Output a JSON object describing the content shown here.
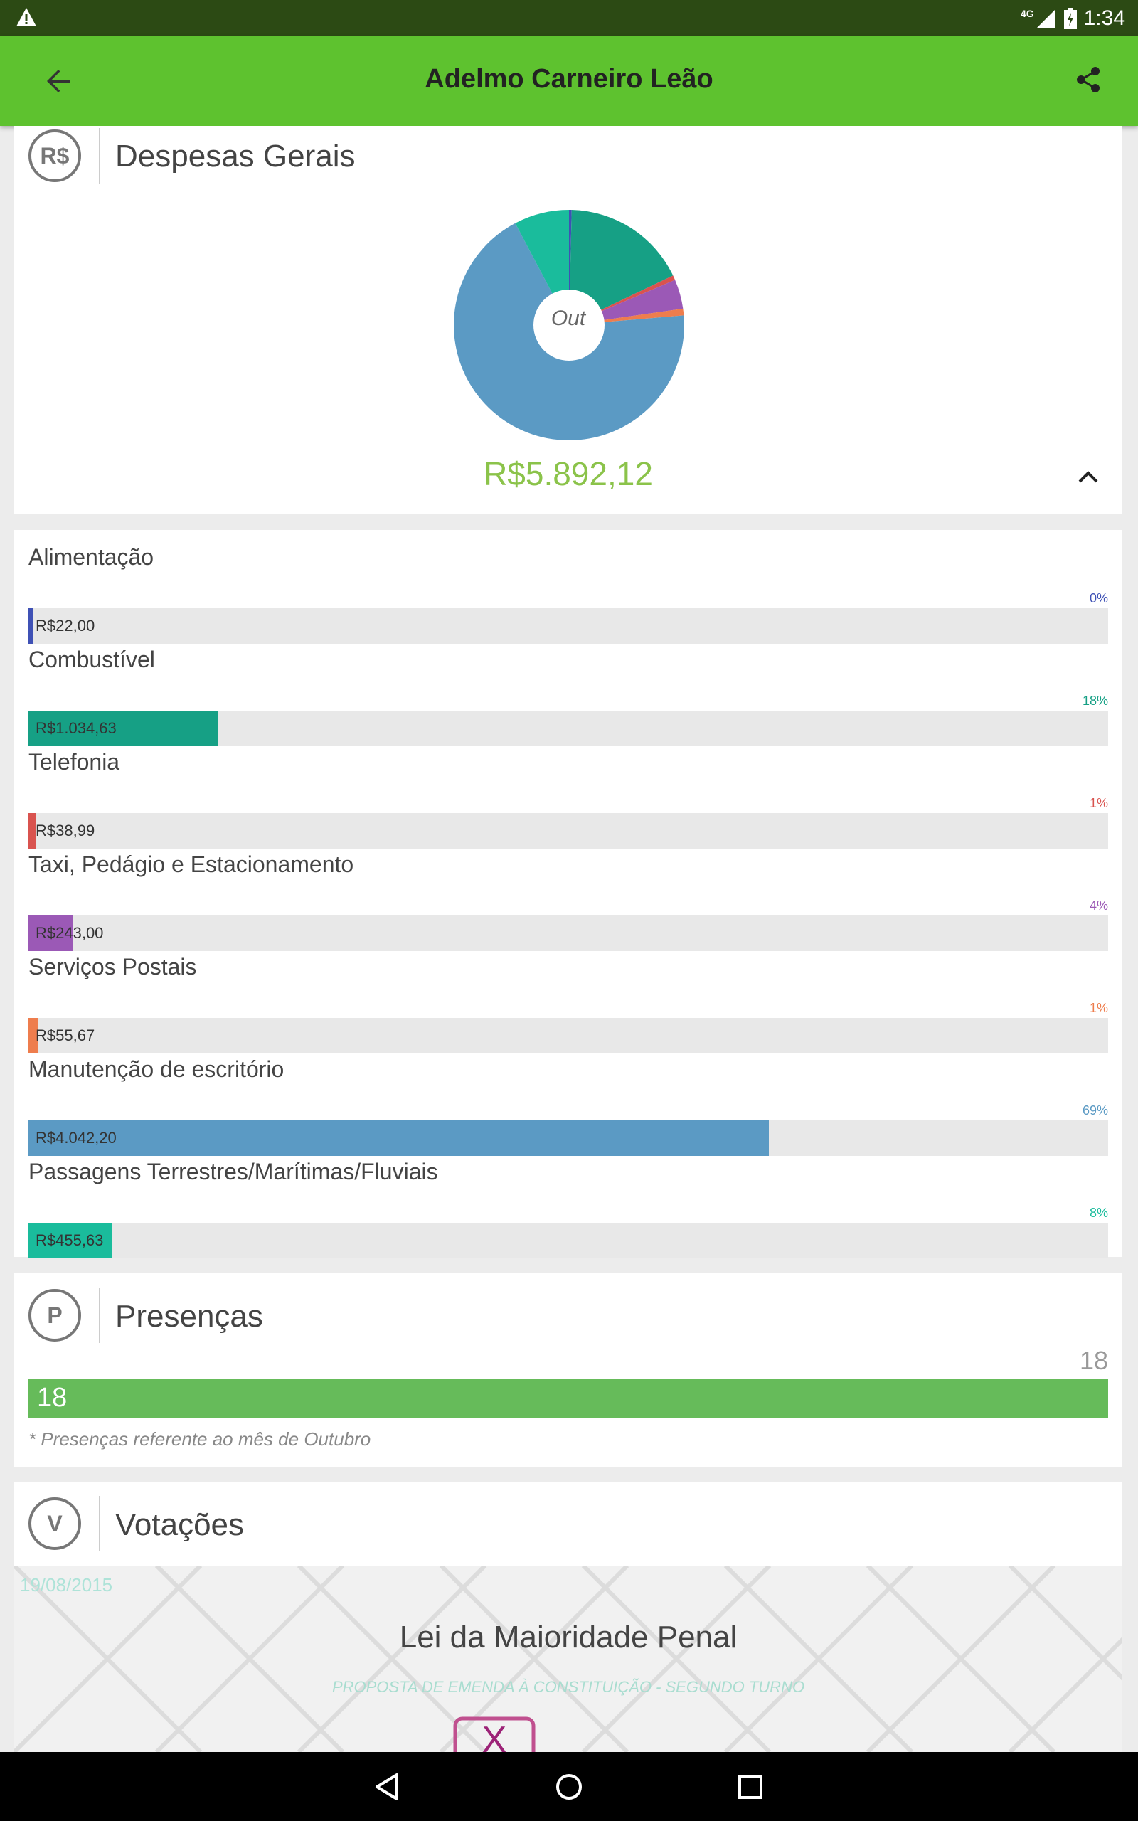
{
  "status_bar": {
    "time": "1:34",
    "network": "4G"
  },
  "app_bar": {
    "title": "Adelmo Carneiro Leão"
  },
  "despesas": {
    "icon_label": "R$",
    "title": "Despesas Gerais",
    "pie_center_label": "Out",
    "total": "R$5.892,12"
  },
  "categories": [
    {
      "label": "Alimentação",
      "percent": "0%",
      "value": "R$22,00",
      "fraction": 0.0037,
      "color": "#3f51b5"
    },
    {
      "label": "Combustível",
      "percent": "18%",
      "value": "R$1.034,63",
      "fraction": 0.1756,
      "color": "#16a085"
    },
    {
      "label": "Telefonia",
      "percent": "1%",
      "value": "R$38,99",
      "fraction": 0.0066,
      "color": "#d9534f"
    },
    {
      "label": "Taxi, Pedágio e Estacionamento",
      "percent": "4%",
      "value": "R$243,00",
      "fraction": 0.0412,
      "color": "#9b59b6"
    },
    {
      "label": "Serviços Postais",
      "percent": "1%",
      "value": "R$55,67",
      "fraction": 0.0094,
      "color": "#ee7d4d"
    },
    {
      "label": "Manutenção de escritório",
      "percent": "69%",
      "value": "R$4.042,20",
      "fraction": 0.686,
      "color": "#5b9ac4"
    },
    {
      "label": "Passagens Terrestres/Marítimas/Fluviais",
      "percent": "8%",
      "value": "R$455,63",
      "fraction": 0.0773,
      "color": "#1abc9c"
    }
  ],
  "presencas": {
    "icon_label": "P",
    "title": "Presenças",
    "count": "18",
    "bar_value": "18",
    "note": "* Presenças referente ao mês de Outubro"
  },
  "votacoes": {
    "icon_label": "V",
    "title": "Votações",
    "date": "19/08/2015",
    "item_title": "Lei da Maioridade Penal",
    "item_subtitle": "PROPOSTA DE EMENDA À CONSTITUIÇÃO - SEGUNDO TURNO"
  }
}
